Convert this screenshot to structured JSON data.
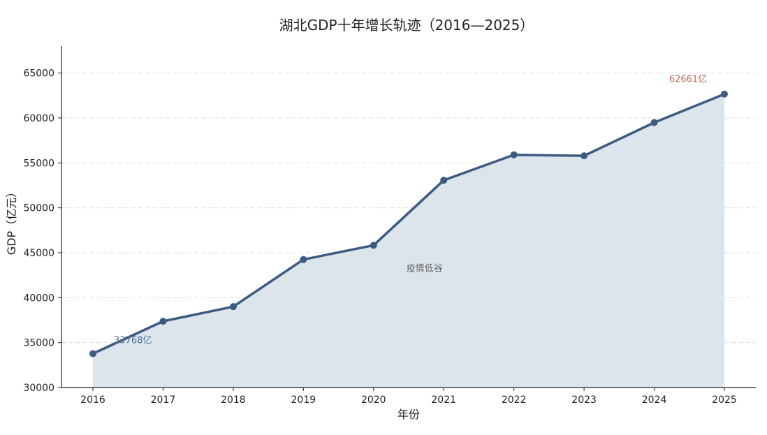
{
  "chart_data": {
    "type": "area",
    "title": "湖北GDP十年增长轨迹（2016—2025）",
    "xlabel": "年份",
    "ylabel": "GDP（亿元）",
    "categories": [
      "2016",
      "2017",
      "2018",
      "2019",
      "2020",
      "2021",
      "2022",
      "2023",
      "2024",
      "2025"
    ],
    "series": [
      {
        "values": [
          33768,
          37372,
          39000,
          44247,
          45830,
          53067,
          55900,
          55790,
          59490,
          62661
        ]
      }
    ],
    "ylim": [
      30000,
      68000
    ],
    "yticks": [
      30000,
      35000,
      40000,
      45000,
      50000,
      55000,
      60000,
      65000
    ],
    "grid": "horizontal-dashed",
    "annotations": [
      {
        "text": "33768亿",
        "x": "2016",
        "value": 33768,
        "color": "#4f6d8f"
      },
      {
        "text": "疫情低谷",
        "x": "2020",
        "value": 45830,
        "color": "#666666"
      },
      {
        "text": "62661亿",
        "x": "2025",
        "value": 62661,
        "color": "#c0675e"
      }
    ],
    "colors": {
      "line": "#3d5a80",
      "fill": "#dde5ec",
      "grid": "#dddddd",
      "axis": "#222222",
      "text": "#222222"
    }
  }
}
